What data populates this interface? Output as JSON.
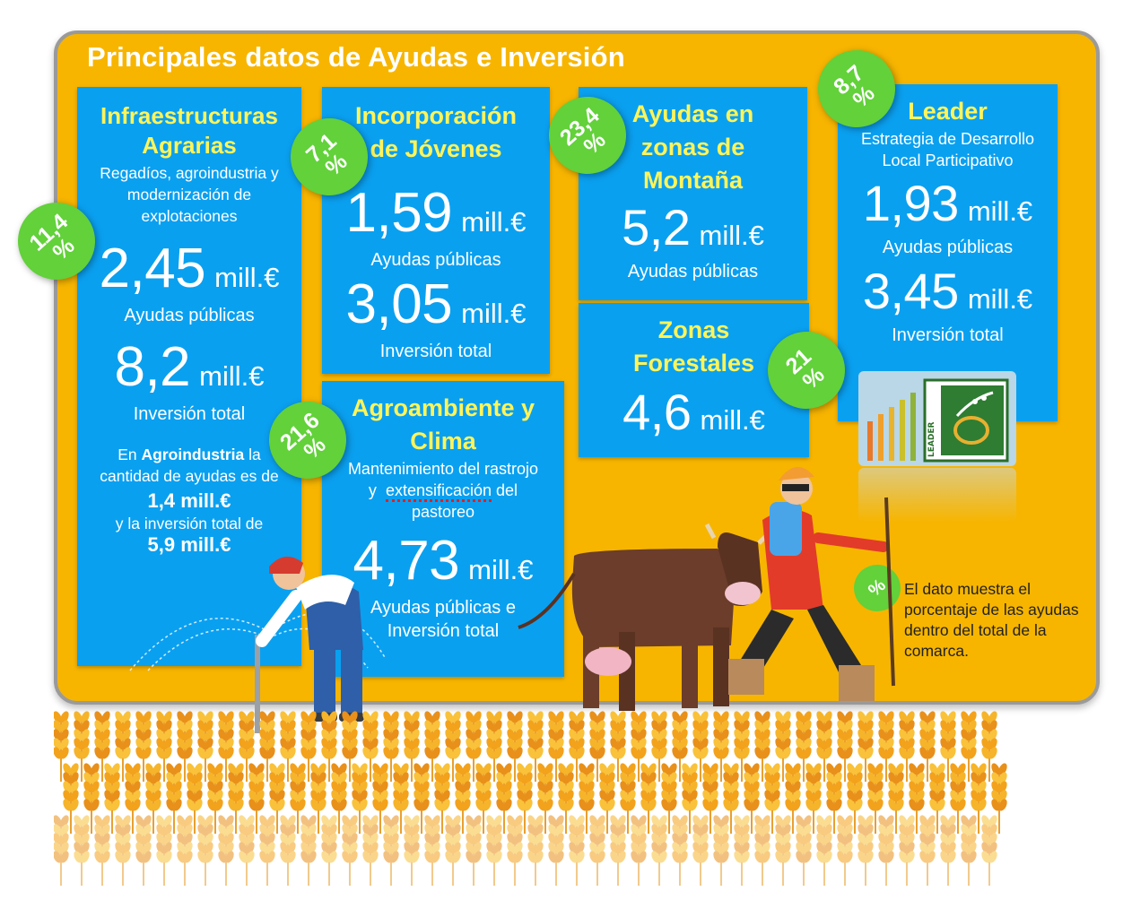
{
  "title": "Principales datos de Ayudas e Inversión",
  "infra": {
    "heading_1": "Infraestructuras",
    "heading_2": "Agrarias",
    "sub": "Regadíos, agroindustria y modernización de explotaciones",
    "ayudas_value": "2,45",
    "ayudas_unit": "mill.€",
    "ayudas_label": "Ayudas públicas",
    "inversion_value": "8,2",
    "inversion_unit": "mill.€",
    "inversion_label": "Inversión total",
    "note_1": "En",
    "note_bold": "Agroindustria",
    "note_2": "la cantidad de ayudas es de",
    "note_value_1": "1,4 mill.€",
    "note_3": "y la inversión total de",
    "note_value_2": "5,9 mill.€",
    "badge": "11,4",
    "badge_pct": "%"
  },
  "jovenes": {
    "heading_1": "Incorporación",
    "heading_2": "de Jóvenes",
    "ayudas_value": "1,59",
    "ayudas_unit": "mill.€",
    "ayudas_label": "Ayudas públicas",
    "inversion_value": "3,05",
    "inversion_unit": "mill.€",
    "inversion_label": "Inversión total",
    "badge": "7,1",
    "badge_pct": "%"
  },
  "agroambiente": {
    "heading_1": "Agroambiente y",
    "heading_2": "Clima",
    "sub_1": "Mantenimiento del rastrojo",
    "sub_2a": "y",
    "sub_2b": "extensificación",
    "sub_2c": "del",
    "sub_3": "pastoreo",
    "value": "4,73",
    "unit": "mill.€",
    "label_1": "Ayudas públicas e",
    "label_2": "Inversión total",
    "badge": "21,6",
    "badge_pct": "%"
  },
  "montana": {
    "heading_1": "Ayudas en",
    "heading_2": "zonas de",
    "heading_3": "Montaña",
    "value": "5,2",
    "unit": "mill.€",
    "label": "Ayudas públicas",
    "badge": "23,4",
    "badge_pct": "%"
  },
  "forestales": {
    "heading_1": "Zonas",
    "heading_2": "Forestales",
    "value": "4,6",
    "unit": "mill.€",
    "badge": "21",
    "badge_pct": "%"
  },
  "leader": {
    "heading": "Leader",
    "sub_1": "Estrategia de Desarrollo",
    "sub_2": "Local Participativo",
    "ayudas_value": "1,93",
    "ayudas_unit": "mill.€",
    "ayudas_label": "Ayudas públicas",
    "inversion_value": "3,45",
    "inversion_unit": "mill.€",
    "inversion_label": "Inversión total",
    "logo_text": "LEADER",
    "badge": "8,7",
    "badge_pct": "%"
  },
  "legend": {
    "badge": "%",
    "text": "El dato muestra el porcentaje de las ayudas dentro del total de la comarca."
  },
  "colors": {
    "board": "#f7b500",
    "card": "#0aa0f0",
    "heading": "#fff45a",
    "badge": "#62d13a"
  }
}
